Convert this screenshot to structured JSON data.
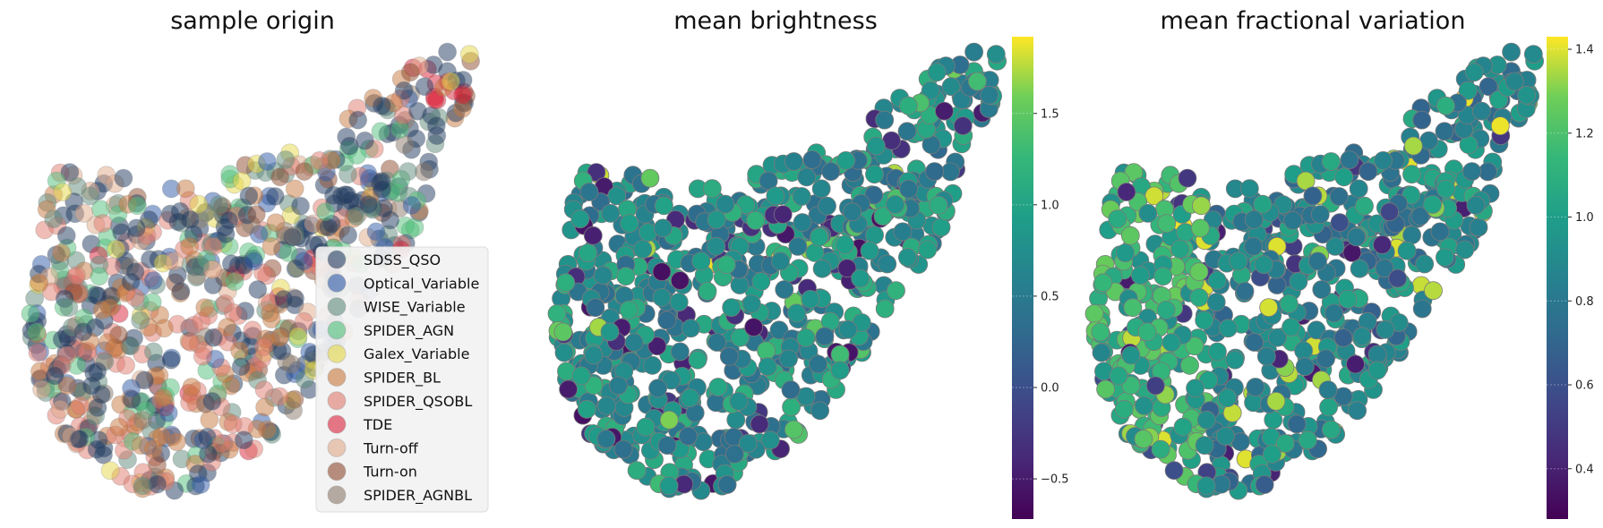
{
  "chart_data": [
    {
      "type": "scatter",
      "title": "sample origin",
      "legend_position": "lower-right",
      "series": [
        {
          "name": "SDSS_QSO",
          "color": "#1f3a5f"
        },
        {
          "name": "Optical_Variable",
          "color": "#2e5aa8"
        },
        {
          "name": "WISE_Variable",
          "color": "#5e8a7a"
        },
        {
          "name": "SPIDER_AGN",
          "color": "#4fbf7a"
        },
        {
          "name": "Galex_Variable",
          "color": "#e6d84a"
        },
        {
          "name": "SPIDER_BL",
          "color": "#c8783d"
        },
        {
          "name": "SPIDER_QSOBL",
          "color": "#e07a6e"
        },
        {
          "name": "TDE",
          "color": "#d9213a"
        },
        {
          "name": "Turn-off",
          "color": "#e0a98a"
        },
        {
          "name": "Turn-on",
          "color": "#8e4a2e"
        },
        {
          "name": "SPIDER_AGNBL",
          "color": "#8a7a6a"
        }
      ]
    },
    {
      "type": "scatter",
      "title": "mean brightness",
      "colorbar": {
        "range": [
          -0.72,
          1.92
        ],
        "ticks": [
          -0.5,
          0.0,
          0.5,
          1.0,
          1.5
        ],
        "tick_labels": [
          "−0.5",
          "0.0",
          "0.5",
          "1.0",
          "1.5"
        ],
        "colormap": "viridis"
      }
    },
    {
      "type": "scatter",
      "title": "mean fractional variation",
      "colorbar": {
        "range": [
          0.28,
          1.43
        ],
        "ticks": [
          0.4,
          0.6,
          0.8,
          1.0,
          1.2,
          1.4
        ],
        "tick_labels": [
          "0.4",
          "0.6",
          "0.8",
          "1.0",
          "1.2",
          "1.4"
        ],
        "colormap": "viridis"
      }
    }
  ]
}
